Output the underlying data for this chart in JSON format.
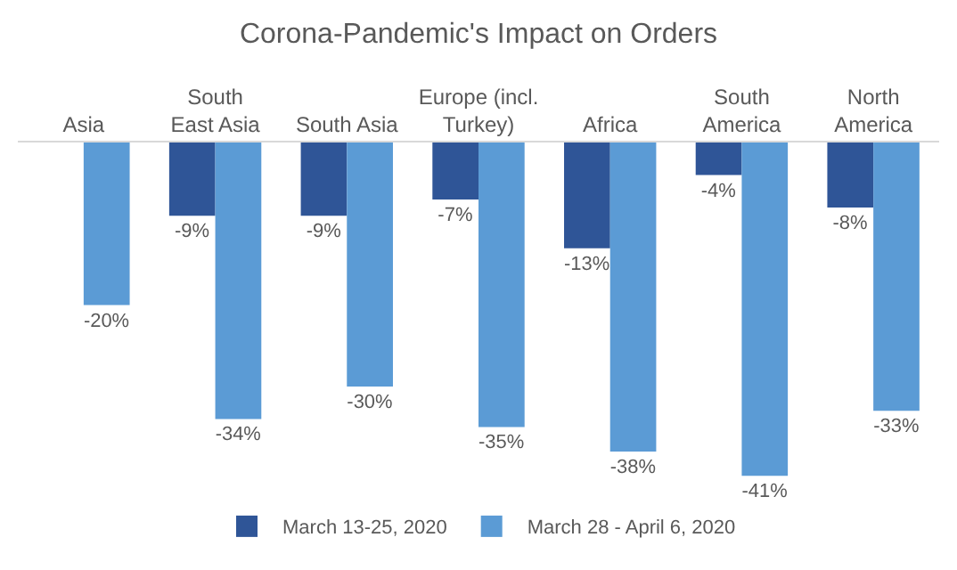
{
  "chart_data": {
    "type": "bar",
    "title": "Corona-Pandemic's Impact on Orders",
    "categories": [
      "Asia",
      "South East Asia",
      "South Asia",
      "Europe (incl. Turkey)",
      "Africa",
      "South America",
      "North America"
    ],
    "series": [
      {
        "name": "March 13-25, 2020",
        "color": "#2f5597",
        "values": [
          null,
          -9,
          -9,
          -7,
          -13,
          -4,
          -8
        ],
        "value_labels": [
          null,
          "-9%",
          "-9%",
          "-7%",
          "-13%",
          "-4%",
          "-8%"
        ]
      },
      {
        "name": "March 28 - April 6, 2020",
        "color": "#5b9bd5",
        "values": [
          -20,
          -34,
          -30,
          -35,
          -38,
          -41,
          -33
        ],
        "value_labels": [
          "-20%",
          "-34%",
          "-30%",
          "-35%",
          "-38%",
          "-41%",
          "-33%"
        ]
      }
    ],
    "legend": "bottom",
    "tick_labels": "x"
  }
}
